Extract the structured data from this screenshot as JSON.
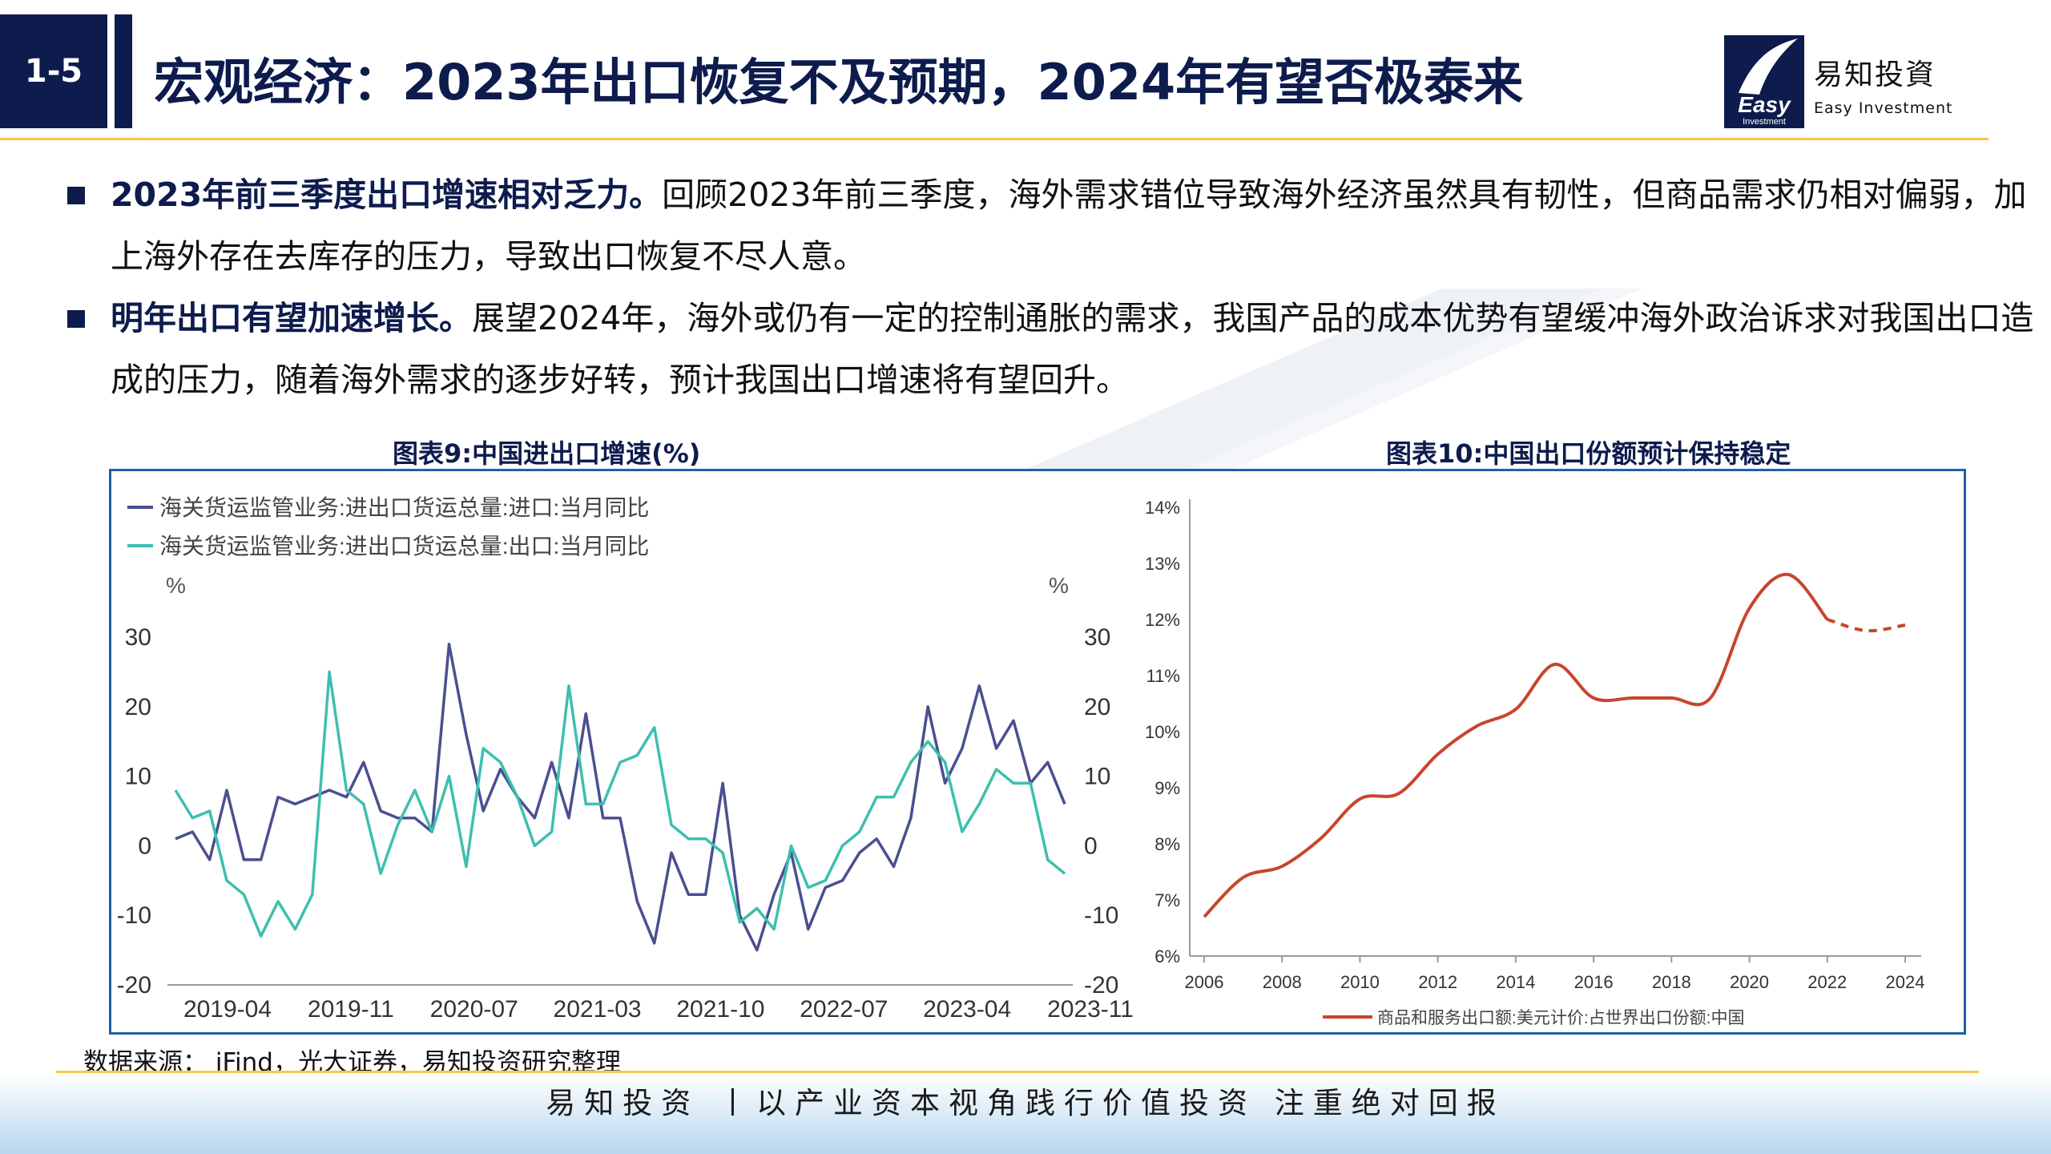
{
  "header": {
    "section_no": "1-5",
    "title": "宏观经济：2023年出口恢复不及预期，2024年有望否极泰来",
    "logo_cn": "易知投資",
    "logo_en": "Easy Investment",
    "logo_mark_text": "Easy",
    "logo_mark_sub": "Investment"
  },
  "bullets": [
    {
      "lead": "2023年前三季度出口增速相对乏力。",
      "text": "回顾2023年前三季度，海外需求错位导致海外经济虽然具有韧性，但商品需求仍相对偏弱，加上海外存在去库存的压力，导致出口恢复不尽人意。"
    },
    {
      "lead": "明年出口有望加速增长。",
      "text": "展望2024年，海外或仍有一定的控制通胀的需求，我国产品的成本优势有望缓冲海外政治诉求对我国出口造成的压力，随着海外需求的逐步好转，预计我国出口增速将有望回升。"
    }
  ],
  "source": "数据来源： iFind，光大证券，易知投资研究整理",
  "footer": "易知投资 丨以产业资本视角践行价值投资  注重绝对回报",
  "colors": {
    "navy": "#0d1b4d",
    "import_line": "#4a4f8f",
    "export_line": "#3dbfae",
    "share_line": "#c8452d",
    "frame": "#1f5fa8",
    "gold": "#f4c84b"
  },
  "chart_data": [
    {
      "type": "line",
      "title": "图表9:中国进出口增速(%)",
      "y_unit_left": "%",
      "y_unit_right": "%",
      "ylim": [
        -20,
        30
      ],
      "yticks": [
        -20,
        -10,
        0,
        10,
        20,
        30
      ],
      "xticks": [
        "2019-04",
        "2019-11",
        "2020-07",
        "2021-03",
        "2021-10",
        "2022-07",
        "2023-04",
        "2023-11"
      ],
      "legend_position": "top-left",
      "grid": false,
      "series": [
        {
          "name": "海关货运监管业务:进出口货运总量:进口:当月同比",
          "color": "#4a4f8f",
          "values": [
            1,
            2,
            -2,
            8,
            -2,
            -2,
            7,
            6,
            7,
            8,
            7,
            12,
            5,
            4,
            4,
            2,
            29,
            16,
            5,
            11,
            7,
            4,
            12,
            4,
            19,
            4,
            4,
            -8,
            -14,
            -1,
            -7,
            -7,
            9,
            -10,
            -15,
            -7,
            -1,
            -12,
            -6,
            -5,
            -1,
            1,
            -3,
            4,
            20,
            9,
            14,
            23,
            14,
            18,
            9,
            12,
            6
          ]
        },
        {
          "name": "海关货运监管业务:进出口货运总量:出口:当月同比",
          "color": "#3dbfae",
          "values": [
            8,
            4,
            5,
            -5,
            -7,
            -13,
            -8,
            -12,
            -7,
            25,
            8,
            6,
            -4,
            3,
            8,
            2,
            10,
            -3,
            14,
            12,
            7,
            0,
            2,
            23,
            6,
            6,
            12,
            13,
            17,
            3,
            1,
            1,
            -1,
            -11,
            -9,
            -12,
            0,
            -6,
            -5,
            0,
            2,
            7,
            7,
            12,
            15,
            12,
            2,
            6,
            11,
            9,
            9,
            -2,
            -4
          ]
        }
      ]
    },
    {
      "type": "line",
      "title": "图表10:中国出口份额预计保持稳定",
      "ylim": [
        6,
        14
      ],
      "yticks": [
        "6%",
        "7%",
        "8%",
        "9%",
        "10%",
        "11%",
        "12%",
        "13%",
        "14%"
      ],
      "xticks": [
        "2006",
        "2008",
        "2010",
        "2012",
        "2014",
        "2016",
        "2018",
        "2020",
        "2022",
        "2024"
      ],
      "legend_position": "bottom",
      "grid": false,
      "series": [
        {
          "name": "商品和服务出口额:美元计价:占世界出口份额:中国",
          "color": "#c8452d",
          "x": [
            2006,
            2007,
            2008,
            2009,
            2010,
            2011,
            2012,
            2013,
            2014,
            2015,
            2016,
            2017,
            2018,
            2019,
            2020,
            2021,
            2022
          ],
          "values": [
            6.7,
            7.4,
            7.6,
            8.1,
            8.8,
            8.9,
            9.6,
            10.1,
            10.4,
            11.2,
            10.6,
            10.6,
            10.6,
            10.6,
            12.2,
            12.8,
            12.0
          ],
          "forecast_x": [
            2022,
            2023,
            2024
          ],
          "forecast_values": [
            12.0,
            11.8,
            11.9
          ]
        }
      ]
    }
  ]
}
